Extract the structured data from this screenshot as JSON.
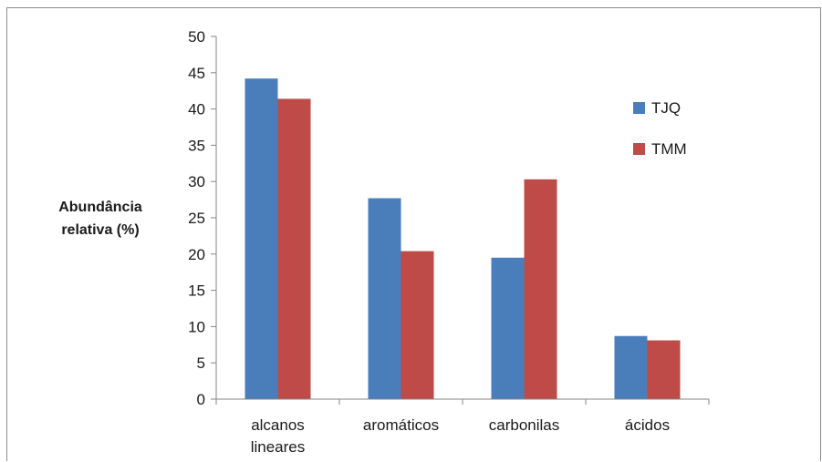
{
  "chart_data": {
    "type": "bar",
    "categories": [
      "alcanos lineares",
      "aromáticos",
      "carbonilas",
      "ácidos"
    ],
    "category_lines": [
      [
        "alcanos",
        "lineares"
      ],
      [
        "aromáticos"
      ],
      [
        "carbonilas"
      ],
      [
        "ácidos"
      ]
    ],
    "series": [
      {
        "name": "TJQ",
        "values": [
          44.2,
          27.7,
          19.5,
          8.7
        ],
        "color": "#4a7ebb"
      },
      {
        "name": "TMM",
        "values": [
          41.4,
          20.4,
          30.3,
          8.1
        ],
        "color": "#be4b48"
      }
    ],
    "title": "",
    "xlabel": "",
    "ylabel": "Abundância relativa (%)",
    "ylabel_lines": [
      "Abundância",
      "relativa (%)"
    ],
    "ylim": [
      0,
      50
    ],
    "yticks": [
      0,
      5,
      10,
      15,
      20,
      25,
      30,
      35,
      40,
      45,
      50
    ],
    "grid": false,
    "legend_position": "right"
  }
}
